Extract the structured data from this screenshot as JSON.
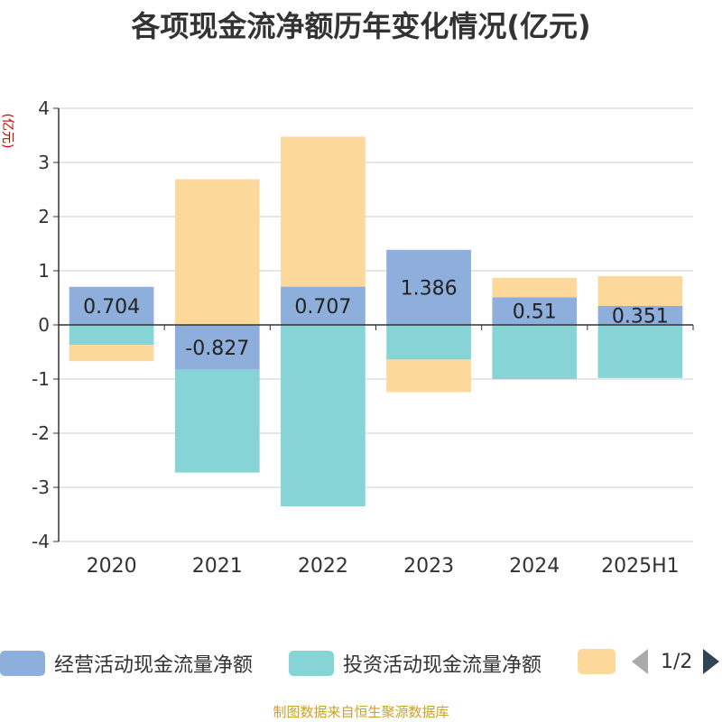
{
  "chart_data": {
    "type": "bar",
    "stacked": true,
    "title": "各项现金流净额历年变化情况(亿元)",
    "ylabel": "(亿元)",
    "ylim": [
      -4,
      4
    ],
    "yticks": [
      -4,
      -3,
      -2,
      -1,
      0,
      1,
      2,
      3,
      4
    ],
    "categories": [
      "2020",
      "2021",
      "2022",
      "2023",
      "2024",
      "2025H1"
    ],
    "series": [
      {
        "name": "经营活动现金流量净额",
        "color": "#8eaedb",
        "values": [
          0.704,
          -0.827,
          0.707,
          1.386,
          0.51,
          0.351
        ],
        "labels": [
          "0.704",
          "-0.827",
          "0.707",
          "1.386",
          "0.51",
          "0.351"
        ]
      },
      {
        "name": "投资活动现金流量净额",
        "color": "#87d4d6",
        "values": [
          -0.37,
          -1.9,
          -3.35,
          -0.64,
          -1.0,
          -0.98
        ]
      },
      {
        "name": "",
        "color": "#fdd89b",
        "values": [
          -0.3,
          2.69,
          2.77,
          -0.6,
          0.36,
          0.55
        ]
      }
    ],
    "grid": true,
    "legend_position": "bottom"
  },
  "legend": {
    "page_indicator": "1/2"
  },
  "source_note": "制图数据来自恒生聚源数据库"
}
